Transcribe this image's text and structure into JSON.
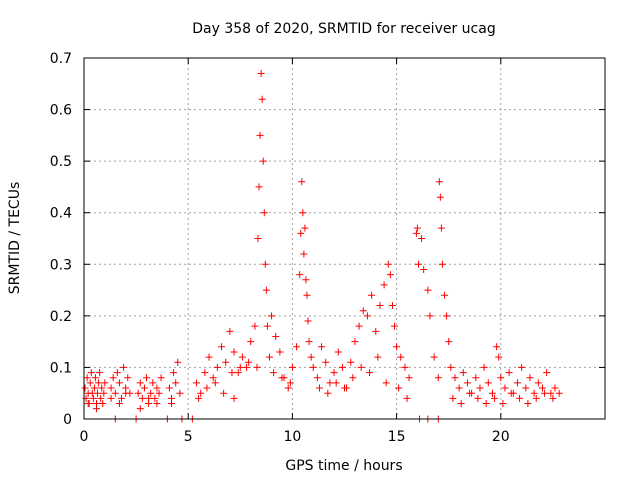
{
  "chart_data": {
    "type": "scatter",
    "title": "Day 358 of 2020, SRMTID for receiver ucag",
    "xlabel": "GPS time / hours",
    "ylabel": "SRMTID / TECUs",
    "xlim": [
      0,
      25
    ],
    "ylim": [
      0,
      0.7
    ],
    "x_ticks": [
      0,
      5,
      10,
      15,
      20
    ],
    "y_ticks": [
      0,
      0.1,
      0.2,
      0.3,
      0.4,
      0.5,
      0.6,
      0.7
    ],
    "x_tick_labels": [
      "0",
      "5",
      "10",
      "15",
      "20"
    ],
    "y_tick_labels": [
      "0",
      "0.1",
      "0.2",
      "0.3",
      "0.4",
      "0.5",
      "0.6",
      "0.7"
    ],
    "grid": true,
    "marker": "+",
    "color": "#ff0000",
    "series": [
      {
        "name": "SRMTID",
        "x": [
          0.05,
          0.1,
          0.15,
          0.2,
          0.25,
          0.3,
          0.35,
          0.4,
          0.45,
          0.5,
          0.55,
          0.6,
          0.65,
          0.7,
          0.75,
          0.8,
          0.85,
          0.9,
          0.95,
          1.0,
          1.3,
          1.4,
          1.5,
          1.6,
          1.7,
          1.8,
          1.9,
          2.0,
          2.1,
          2.2,
          2.6,
          2.7,
          2.8,
          2.9,
          3.0,
          3.1,
          3.2,
          3.3,
          3.4,
          3.5,
          3.6,
          3.7,
          4.1,
          4.2,
          4.3,
          4.4,
          4.5,
          5.4,
          5.6,
          5.8,
          6.0,
          6.2,
          6.4,
          6.6,
          6.8,
          7.0,
          7.2,
          7.4,
          7.6,
          7.8,
          8.0,
          8.2,
          8.35,
          8.4,
          8.45,
          8.5,
          8.55,
          8.6,
          8.65,
          8.7,
          8.75,
          8.8,
          8.9,
          9.0,
          9.2,
          9.4,
          9.6,
          9.8,
          10.0,
          10.2,
          10.35,
          10.4,
          10.45,
          10.5,
          10.55,
          10.6,
          10.65,
          10.7,
          10.75,
          10.8,
          10.9,
          11.0,
          11.2,
          11.4,
          11.6,
          11.8,
          12.0,
          12.2,
          12.4,
          12.6,
          12.8,
          13.0,
          13.2,
          13.4,
          13.6,
          13.8,
          14.0,
          14.2,
          14.4,
          14.6,
          14.7,
          14.8,
          14.9,
          15.0,
          15.2,
          15.4,
          15.6,
          15.95,
          16.0,
          16.05,
          16.2,
          16.3,
          16.5,
          16.6,
          16.8,
          17.0,
          17.05,
          17.1,
          17.15,
          17.2,
          17.3,
          17.4,
          17.5,
          17.6,
          17.8,
          18.0,
          18.2,
          18.4,
          18.6,
          18.8,
          19.0,
          19.2,
          19.4,
          19.6,
          19.8,
          19.9,
          20.0,
          20.2,
          20.4,
          20.6,
          20.8,
          21.0,
          21.2,
          21.4,
          21.6,
          21.8,
          22.0,
          22.2,
          22.4,
          22.6,
          22.8,
          0.2,
          0.6,
          1.3,
          1.7,
          2.0,
          2.7,
          3.1,
          3.5,
          4.2,
          4.6,
          5.5,
          5.9,
          6.3,
          6.7,
          7.1,
          7.5,
          7.9,
          8.3,
          9.1,
          9.5,
          9.9,
          11.3,
          11.7,
          12.1,
          12.5,
          12.9,
          13.3,
          13.7,
          14.1,
          14.5,
          15.1,
          15.5,
          17.7,
          18.1,
          18.5,
          18.9,
          19.3,
          19.7,
          20.1,
          20.5,
          20.9,
          21.3,
          21.7,
          22.1,
          22.5,
          1.5,
          2.5,
          4.0,
          4.7,
          5.2,
          7.2,
          16.1,
          16.5,
          17.0
        ],
        "y": [
          0.06,
          0.04,
          0.08,
          0.05,
          0.03,
          0.07,
          0.09,
          0.05,
          0.04,
          0.06,
          0.08,
          0.03,
          0.05,
          0.07,
          0.09,
          0.04,
          0.06,
          0.03,
          0.05,
          0.07,
          0.06,
          0.08,
          0.05,
          0.09,
          0.07,
          0.04,
          0.1,
          0.06,
          0.08,
          0.05,
          0.05,
          0.07,
          0.04,
          0.06,
          0.08,
          0.03,
          0.05,
          0.07,
          0.04,
          0.06,
          0.05,
          0.08,
          0.06,
          0.04,
          0.09,
          0.07,
          0.11,
          0.07,
          0.05,
          0.09,
          0.12,
          0.08,
          0.1,
          0.14,
          0.11,
          0.17,
          0.13,
          0.09,
          0.12,
          0.1,
          0.15,
          0.18,
          0.35,
          0.45,
          0.55,
          0.67,
          0.62,
          0.5,
          0.4,
          0.3,
          0.25,
          0.18,
          0.12,
          0.2,
          0.16,
          0.13,
          0.08,
          0.06,
          0.1,
          0.14,
          0.28,
          0.36,
          0.46,
          0.4,
          0.32,
          0.37,
          0.27,
          0.24,
          0.19,
          0.15,
          0.12,
          0.1,
          0.08,
          0.14,
          0.11,
          0.07,
          0.09,
          0.13,
          0.1,
          0.06,
          0.11,
          0.15,
          0.18,
          0.21,
          0.2,
          0.24,
          0.17,
          0.22,
          0.26,
          0.3,
          0.28,
          0.22,
          0.18,
          0.14,
          0.12,
          0.1,
          0.08,
          0.36,
          0.37,
          0.3,
          0.35,
          0.29,
          0.25,
          0.2,
          0.12,
          0.08,
          0.46,
          0.43,
          0.37,
          0.3,
          0.24,
          0.2,
          0.15,
          0.1,
          0.08,
          0.06,
          0.09,
          0.07,
          0.05,
          0.08,
          0.06,
          0.1,
          0.07,
          0.05,
          0.14,
          0.12,
          0.08,
          0.06,
          0.09,
          0.05,
          0.07,
          0.1,
          0.06,
          0.08,
          0.05,
          0.07,
          0.06,
          0.09,
          0.05,
          0.06,
          0.05,
          0.03,
          0.02,
          0.04,
          0.03,
          0.05,
          0.02,
          0.04,
          0.03,
          0.03,
          0.05,
          0.04,
          0.06,
          0.07,
          0.05,
          0.09,
          0.1,
          0.11,
          0.1,
          0.09,
          0.08,
          0.07,
          0.06,
          0.05,
          0.07,
          0.06,
          0.08,
          0.1,
          0.09,
          0.12,
          0.07,
          0.06,
          0.04,
          0.04,
          0.03,
          0.05,
          0.04,
          0.03,
          0.04,
          0.03,
          0.05,
          0.04,
          0.03,
          0.04,
          0.05,
          0.04,
          0.0,
          0.0,
          0.0,
          0.0,
          0.0,
          0.04,
          0.0,
          0.0,
          0.0
        ]
      }
    ]
  }
}
